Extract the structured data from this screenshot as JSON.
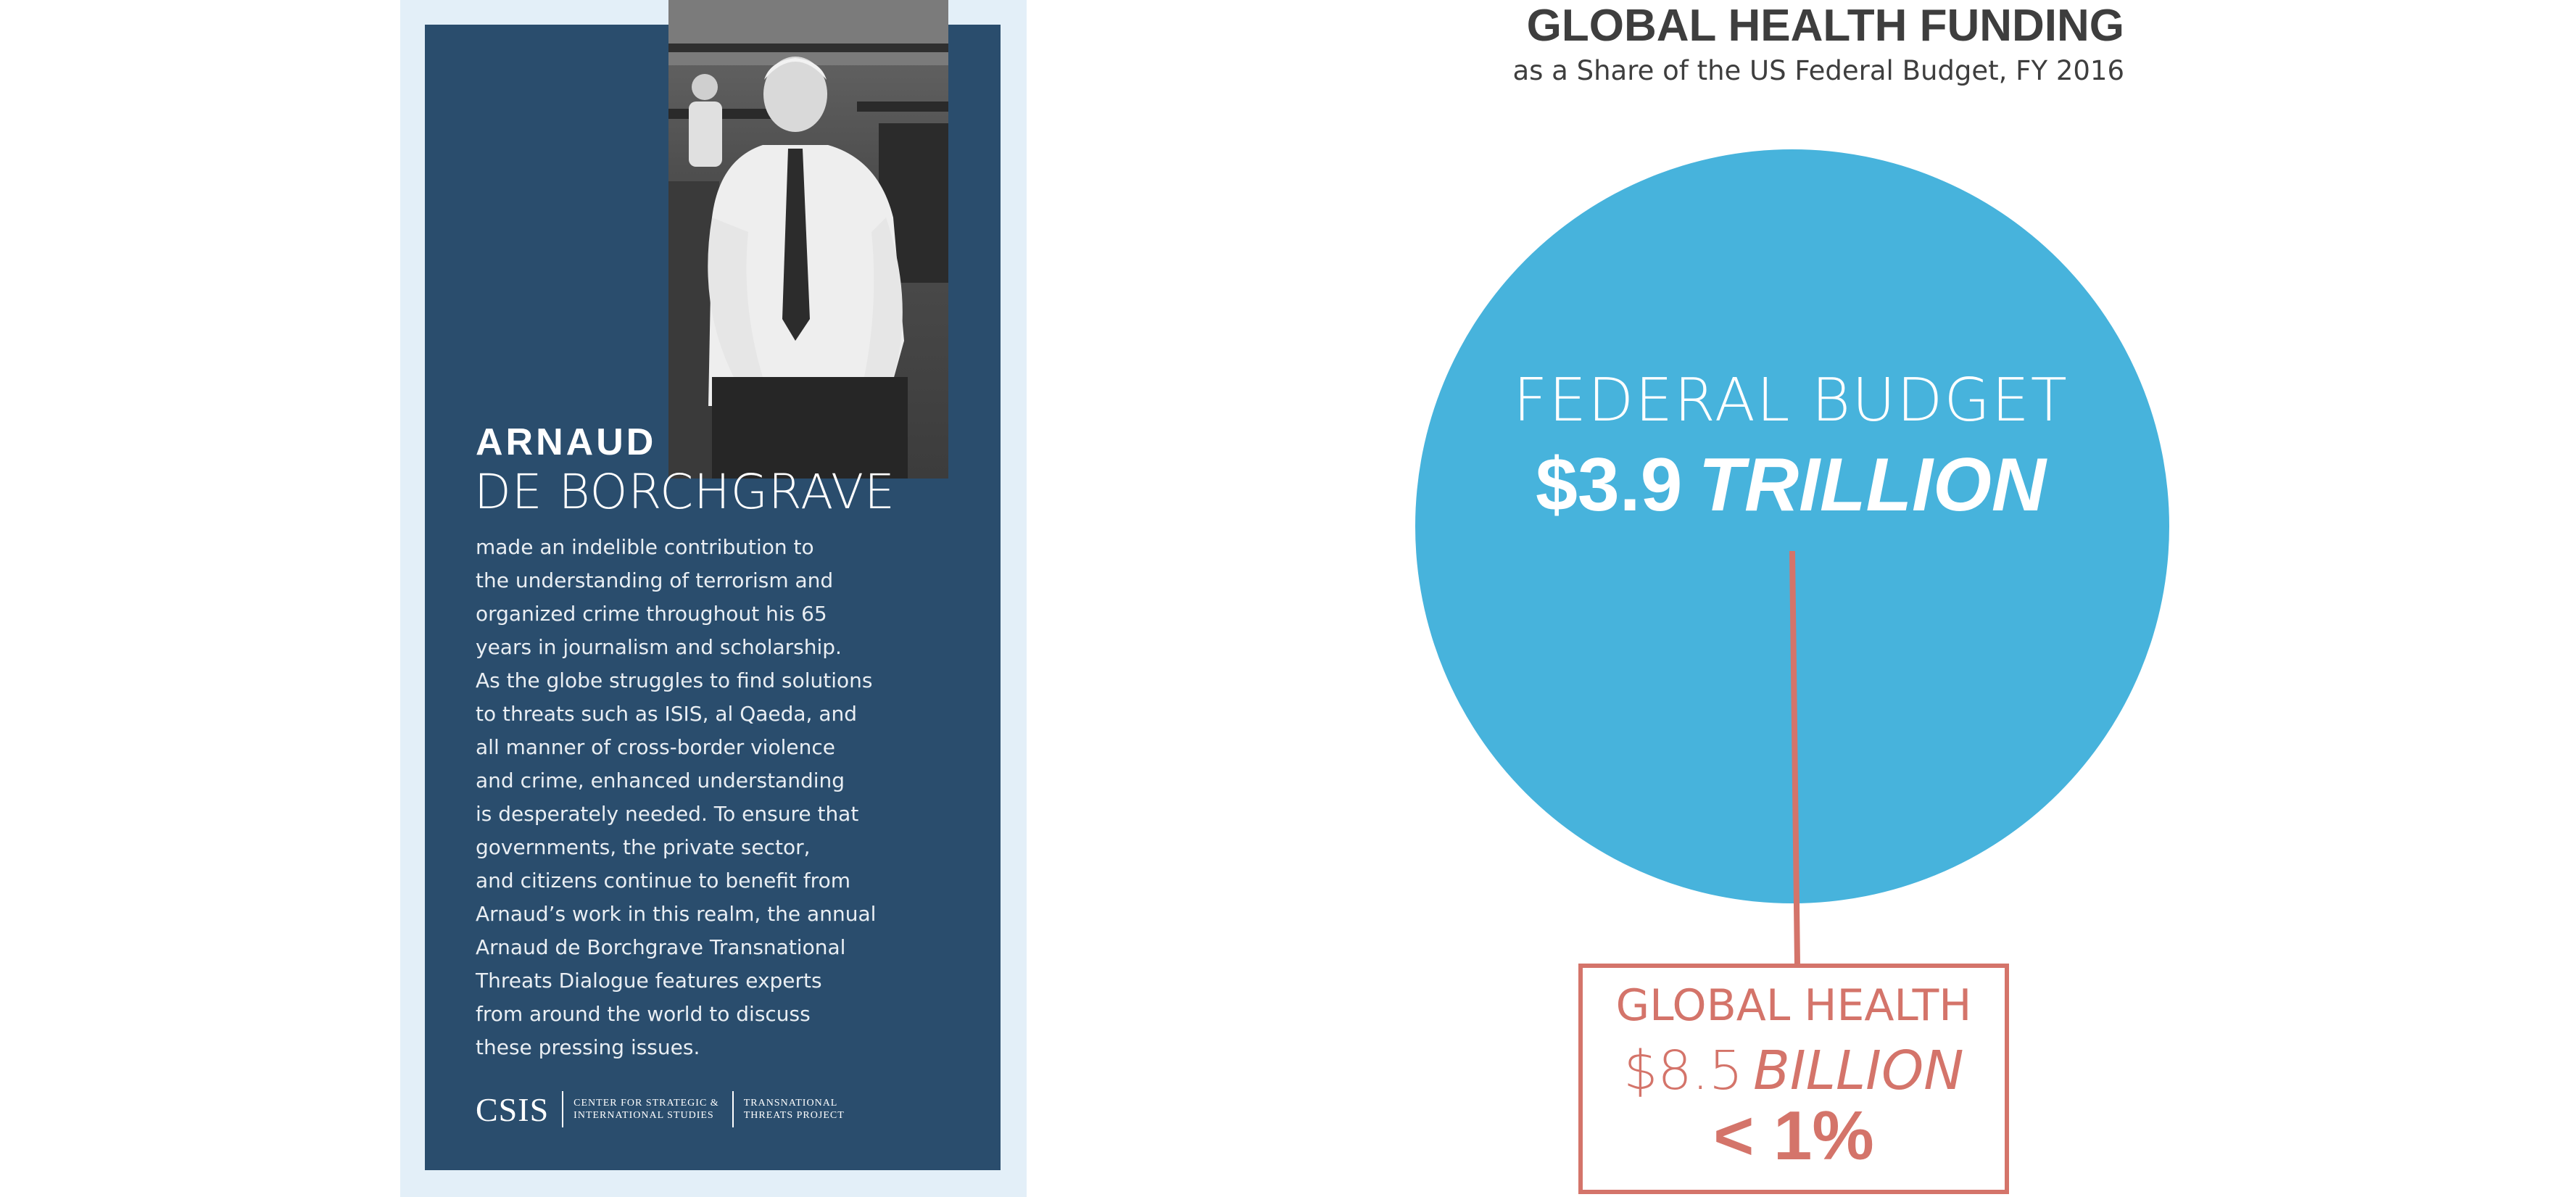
{
  "card": {
    "name_first": "ARNAUD",
    "name_last": "DE BORCHGRAVE",
    "bio_lines": [
      "made an indelible contribution to",
      "the understanding of terrorism and",
      "organized crime throughout his 65",
      "years in journalism and scholarship.",
      "As the globe struggles to find solutions",
      "to threats such as ISIS, al Qaeda, and",
      "all manner of cross-border violence",
      "and crime, enhanced understanding",
      "is desperately needed. To ensure that",
      "governments, the private sector,",
      "and citizens continue to benefit from",
      "Arnaud’s work in this realm, the annual",
      "Arnaud de Borchgrave Transnational",
      "Threats Dialogue features experts",
      "from around the world to discuss",
      "these pressing issues."
    ],
    "logo": {
      "csis": "CSIS",
      "org_line1": "CENTER FOR STRATEGIC &",
      "org_line2": "INTERNATIONAL STUDIES",
      "proj_line1": "TRANSNATIONAL",
      "proj_line2": "THREATS PROJECT"
    },
    "colors": {
      "panel": "#2a4d6d",
      "frame": "#e3eff8"
    }
  },
  "infographic": {
    "title": "GLOBAL HEALTH FUNDING",
    "subtitle": "as a Share of the US Federal Budget, FY 2016",
    "federal": {
      "label": "FEDERAL BUDGET",
      "amount": "$3.9",
      "unit": "TRILLION"
    },
    "global_health": {
      "label": "GLOBAL HEALTH",
      "amount": "$8.5",
      "unit": "BILLION",
      "share": "< 1%"
    },
    "colors": {
      "circle": "#47b3dc",
      "accent": "#d4746a",
      "title": "#3e3e3e"
    }
  }
}
